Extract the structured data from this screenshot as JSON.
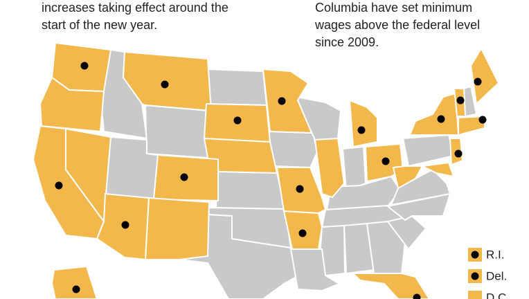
{
  "text_left": [
    "increases taking effect around the",
    "start of the new year."
  ],
  "text_right": [
    "Columbia have set minimum",
    "wages above the federal level",
    "since 2009."
  ],
  "legend": [
    "R.I.",
    "Del.",
    "D.C."
  ]
}
